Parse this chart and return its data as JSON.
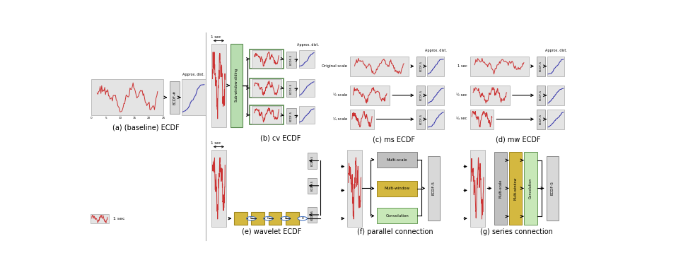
{
  "panel_labels": [
    "(a) (baseline) ECDF",
    "(b) cv ECDF",
    "(c) ms ECDF",
    "(d) mw ECDF",
    "(e) wavelet ECDF",
    "(f) parallel connection",
    "(g) series connection"
  ],
  "background": "#ffffff",
  "signal_color": "#cc3333",
  "ecdf_color": "#3333aa",
  "light_green_bg": "#b8ddb0",
  "green_border": "#5a8a50",
  "yellow_box": "#d4b840",
  "yellow_border": "#a08820",
  "gray_box": "#c0c0c0",
  "gray_border": "#888888",
  "light_green2": "#c8e8b8",
  "green2_border": "#669955",
  "signal_bg": "#e4e4e4",
  "ecdf_bg": "#e4e4e4",
  "approx_dist_label": "Approx. dist.",
  "ecdf_hash_label": "ECDF-#",
  "ecdf_5_label": "ECDF-5",
  "sub_window_label": "Sub-window sliding",
  "multiscale_label": "Multi-scale",
  "multiwindow_label": "Multi-window",
  "convolution_label": "Convolution",
  "one_sec_label": "1 sec",
  "half_sec_label": "½ sec",
  "quarter_sec_label": "¼ sec",
  "orig_scale_label": "Original scale",
  "half_scale_label": "½ scale",
  "quarter_scale_label": "¼ scale",
  "figsize": [
    9.73,
    3.82
  ],
  "dpi": 100
}
